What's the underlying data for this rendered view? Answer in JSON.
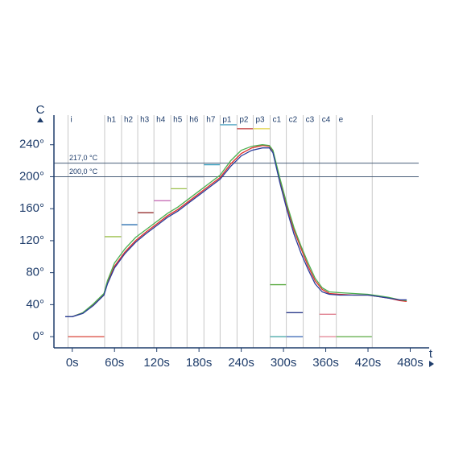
{
  "chart_data": {
    "type": "line",
    "y_label": "C",
    "x_label": "t",
    "xlim": [
      -26,
      492
    ],
    "ylim": [
      -14,
      277
    ],
    "xticks": [
      {
        "value": 0,
        "label": "0s"
      },
      {
        "value": 60,
        "label": "60s"
      },
      {
        "value": 120,
        "label": "120s"
      },
      {
        "value": 180,
        "label": "180s"
      },
      {
        "value": 240,
        "label": "240s"
      },
      {
        "value": 300,
        "label": "300s"
      },
      {
        "value": 360,
        "label": "360s"
      },
      {
        "value": 420,
        "label": "420s"
      },
      {
        "value": 480,
        "label": "480s"
      }
    ],
    "yticks": [
      {
        "value": 0,
        "label": "0°"
      },
      {
        "value": 40,
        "label": "40°"
      },
      {
        "value": 80,
        "label": "80°"
      },
      {
        "value": 120,
        "label": "120°"
      },
      {
        "value": 160,
        "label": "160°"
      },
      {
        "value": 200,
        "label": "200°"
      },
      {
        "value": 240,
        "label": "240°"
      }
    ],
    "reference_lines": [
      {
        "value": 217,
        "label": "217,0 °C"
      },
      {
        "value": 200,
        "label": "200,0 °C"
      }
    ],
    "zones": [
      {
        "label": "i",
        "start": -6,
        "setpoints": [
          {
            "value": 0,
            "color": "#d9443a"
          }
        ]
      },
      {
        "label": "h1",
        "start": 46,
        "setpoints": [
          {
            "value": 125,
            "color": "#9bbf4a"
          }
        ]
      },
      {
        "label": "h2",
        "start": 70,
        "setpoints": [
          {
            "value": 140,
            "color": "#2a6fb0"
          }
        ]
      },
      {
        "label": "h3",
        "start": 93,
        "setpoints": [
          {
            "value": 155,
            "color": "#8b1a1a"
          }
        ]
      },
      {
        "label": "h4",
        "start": 116,
        "setpoints": [
          {
            "value": 170,
            "color": "#c060b0"
          }
        ]
      },
      {
        "label": "h5",
        "start": 140,
        "setpoints": [
          {
            "value": 185,
            "color": "#9bbf4a"
          }
        ]
      },
      {
        "label": "h6",
        "start": 163,
        "setpoints": [
          {
            "value": 200,
            "color": "#1c2b5e"
          }
        ]
      },
      {
        "label": "h7",
        "start": 187,
        "setpoints": [
          {
            "value": 215,
            "color": "#3aa0c0"
          }
        ]
      },
      {
        "label": "p1",
        "start": 210,
        "setpoints": [
          {
            "value": 265,
            "color": "#4aa0c0"
          }
        ]
      },
      {
        "label": "p2",
        "start": 234,
        "setpoints": [
          {
            "value": 260,
            "color": "#c03030"
          }
        ]
      },
      {
        "label": "p3",
        "start": 257,
        "setpoints": [
          {
            "value": 260,
            "color": "#e0d040"
          }
        ]
      },
      {
        "label": "c1",
        "start": 281,
        "setpoints": [
          {
            "value": 65,
            "color": "#5aaa40"
          },
          {
            "value": 0,
            "color": "#3aa0a0"
          }
        ]
      },
      {
        "label": "c2",
        "start": 304,
        "setpoints": [
          {
            "value": 30,
            "color": "#2a3a8a"
          },
          {
            "value": 0,
            "color": "#3060b0"
          }
        ]
      },
      {
        "label": "c3",
        "start": 328,
        "setpoints": []
      },
      {
        "label": "c4",
        "start": 351,
        "setpoints": [
          {
            "value": 28,
            "color": "#e08090"
          },
          {
            "value": 0,
            "color": "#e08090"
          }
        ]
      },
      {
        "label": "e",
        "start": 375,
        "setpoints": [
          {
            "value": 0,
            "color": "#5aaa40"
          }
        ]
      }
    ],
    "zone_end": 426,
    "x": [
      -10,
      0,
      15,
      30,
      45,
      50,
      60,
      75,
      90,
      105,
      120,
      135,
      150,
      165,
      180,
      195,
      210,
      225,
      240,
      255,
      270,
      280,
      285,
      295,
      305,
      315,
      325,
      335,
      345,
      355,
      365,
      380,
      400,
      420,
      435,
      450,
      465,
      475
    ],
    "series": [
      {
        "color": "#e0302a",
        "values": [
          25,
          25,
          30,
          40,
          53,
          68,
          88,
          106,
          120,
          131,
          141,
          151,
          159,
          169,
          179,
          189,
          199,
          216,
          229,
          236,
          239,
          238,
          232,
          196,
          162,
          133,
          110,
          88,
          70,
          59,
          54,
          53,
          52,
          52,
          50,
          48,
          45,
          44
        ]
      },
      {
        "color": "#4caf50",
        "values": [
          25,
          25,
          30,
          41,
          54,
          70,
          92,
          110,
          124,
          134,
          144,
          154,
          162,
          172,
          182,
          192,
          202,
          220,
          233,
          238,
          240,
          239,
          233,
          198,
          165,
          136,
          113,
          92,
          73,
          61,
          56,
          55,
          54,
          53,
          51,
          49,
          46,
          45
        ]
      },
      {
        "color": "#2b3c9a",
        "values": [
          25,
          25,
          29,
          39,
          52,
          66,
          86,
          104,
          118,
          129,
          139,
          149,
          157,
          167,
          177,
          187,
          197,
          213,
          226,
          233,
          236,
          236,
          230,
          192,
          158,
          128,
          104,
          84,
          66,
          56,
          53,
          52,
          52,
          52,
          50,
          48,
          46,
          46
        ]
      }
    ]
  }
}
